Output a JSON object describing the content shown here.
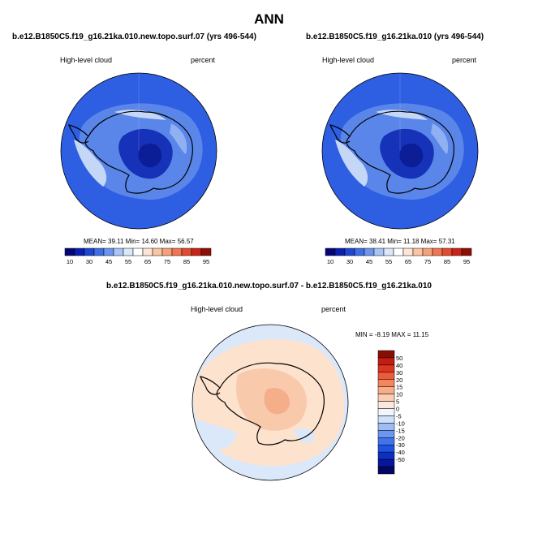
{
  "figure": {
    "title": "ANN"
  },
  "colorbars": {
    "abs_colors": [
      "#05057a",
      "#0a1fb0",
      "#1f46d2",
      "#3e6fe6",
      "#6d95ef",
      "#a9c5f5",
      "#dbe8fa",
      "#ffffff",
      "#fde6d6",
      "#fbc4a3",
      "#f8a07a",
      "#f27552",
      "#e34a2e",
      "#c82417",
      "#8e0d05"
    ],
    "abs_ticks": [
      "10",
      "30",
      "45",
      "55",
      "65",
      "75",
      "85",
      "95"
    ],
    "abs_tick_slots": [
      1,
      3,
      5,
      7,
      9,
      11,
      13,
      15
    ],
    "diff_colors": [
      "#050566",
      "#08169a",
      "#0d2fc4",
      "#1f52e0",
      "#3f74ea",
      "#6b97f0",
      "#9ebcf5",
      "#cfe0fa",
      "#f0f6fe",
      "#fde9dc",
      "#fbcfb4",
      "#f8ad8a",
      "#f4855f",
      "#ec5b3a",
      "#de3520",
      "#c21d0f",
      "#8a0d04"
    ],
    "diff_ticks_top_to_bottom": [
      "50",
      "40",
      "30",
      "20",
      "15",
      "10",
      "5",
      "0",
      "-5",
      "-10",
      "-15",
      "-20",
      "-30",
      "-40",
      "-50"
    ]
  },
  "colors": {
    "abs_base": "#2e5ee2",
    "abs_mid": "#5a86ea",
    "abs_light": "#8fb1f2",
    "abs_pale": "#c4d7f7",
    "abs_dark": "#1632b8",
    "abs_darker": "#0b1e98",
    "diff_base": "#fde2ce",
    "diff_neg": "#dbe8fa",
    "diff_pos": "#f9c9ac",
    "diff_pos2": "#f4ae8a"
  },
  "chart_data": [
    {
      "type": "heatmap",
      "projection": "south-polar-stereographic",
      "title": "b.e12.B1850C5.f19_g16.21ka.010.new.topo.surf.07 (yrs 496-544)",
      "variable": "High-level cloud",
      "units": "percent",
      "stats_text": "MEAN=  39.11  Min=  14.60  Max=  56.57",
      "stats": {
        "mean": 39.11,
        "min": 14.6,
        "max": 56.57
      },
      "colorbar_levels": [
        10,
        30,
        45,
        55,
        65,
        75,
        85,
        95
      ]
    },
    {
      "type": "heatmap",
      "projection": "south-polar-stereographic",
      "title": "b.e12.B1850C5.f19_g16.21ka.010 (yrs 496-544)",
      "variable": "High-level cloud",
      "units": "percent",
      "stats_text": "MEAN=  38.41  Min=  11.18  Max=  57.31",
      "stats": {
        "mean": 38.41,
        "min": 11.18,
        "max": 57.31
      },
      "colorbar_levels": [
        10,
        30,
        45,
        55,
        65,
        75,
        85,
        95
      ]
    },
    {
      "type": "heatmap",
      "projection": "south-polar-stereographic",
      "title": "b.e12.B1850C5.f19_g16.21ka.010.new.topo.surf.07 - b.e12.B1850C5.f19_g16.21ka.010",
      "variable": "High-level cloud",
      "units": "percent",
      "stats_text": "MIN =  -8.19 MAX =  11.15",
      "stats": {
        "min": -8.19,
        "max": 11.15
      },
      "colorbar_levels": [
        50,
        40,
        30,
        20,
        15,
        10,
        5,
        0,
        -5,
        -10,
        -15,
        -20,
        -30,
        -40,
        -50
      ]
    }
  ]
}
